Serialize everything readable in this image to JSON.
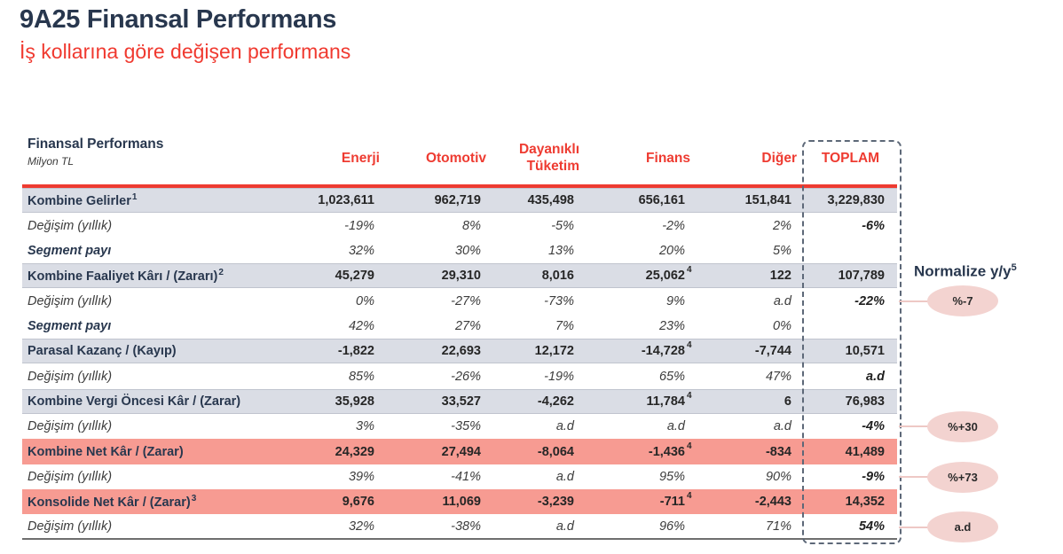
{
  "page": {
    "title": "9A25 Finansal Performans",
    "subtitle": "İş kollarına göre değişen performans"
  },
  "table": {
    "title": "Finansal Performans",
    "unit": "Milyon TL",
    "columns": [
      "Enerji",
      "Otomotiv",
      "Dayanıklı Tüketim",
      "Finans",
      "Diğer",
      "TOPLAM"
    ],
    "rows": [
      {
        "type": "main",
        "band": "gray",
        "label": "Kombine Gelirler",
        "label_sup": "1",
        "values": [
          "1,023,611",
          "962,719",
          "435,498",
          "656,161",
          "151,841",
          "3,229,830"
        ],
        "value_sups": [
          "",
          "",
          "",
          "",
          "",
          ""
        ]
      },
      {
        "type": "change",
        "band": null,
        "label": "Değişim (yıllık)",
        "label_sup": "",
        "values": [
          "-19%",
          "8%",
          "-5%",
          "-2%",
          "2%",
          "-6%"
        ],
        "value_sups": [
          "",
          "",
          "",
          "",
          "",
          ""
        ]
      },
      {
        "type": "share",
        "band": null,
        "label": "Segment payı",
        "label_sup": "",
        "values": [
          "32%",
          "30%",
          "13%",
          "20%",
          "5%",
          ""
        ],
        "value_sups": [
          "",
          "",
          "",
          "",
          "",
          ""
        ]
      },
      {
        "type": "main",
        "band": "gray",
        "label": "Kombine Faaliyet Kârı / (Zararı)",
        "label_sup": "2",
        "values": [
          "45,279",
          "29,310",
          "8,016",
          "25,062",
          "122",
          "107,789"
        ],
        "value_sups": [
          "",
          "",
          "",
          "4",
          "",
          ""
        ]
      },
      {
        "type": "change",
        "band": null,
        "label": "Değişim (yıllık)",
        "label_sup": "",
        "values": [
          "0%",
          "-27%",
          "-73%",
          "9%",
          "a.d",
          "-22%"
        ],
        "value_sups": [
          "",
          "",
          "",
          "",
          "",
          ""
        ]
      },
      {
        "type": "share",
        "band": null,
        "label": "Segment payı",
        "label_sup": "",
        "values": [
          "42%",
          "27%",
          "7%",
          "23%",
          "0%",
          ""
        ],
        "value_sups": [
          "",
          "",
          "",
          "",
          "",
          ""
        ]
      },
      {
        "type": "main",
        "band": "gray",
        "label": "Parasal Kazanç / (Kayıp)",
        "label_sup": "",
        "values": [
          "-1,822",
          "22,693",
          "12,172",
          "-14,728",
          "-7,744",
          "10,571"
        ],
        "value_sups": [
          "",
          "",
          "",
          "4",
          "",
          ""
        ]
      },
      {
        "type": "change",
        "band": null,
        "label": "Değişim (yıllık)",
        "label_sup": "",
        "values": [
          "85%",
          "-26%",
          "-19%",
          "65%",
          "47%",
          "a.d"
        ],
        "value_sups": [
          "",
          "",
          "",
          "",
          "",
          ""
        ]
      },
      {
        "type": "main",
        "band": "gray",
        "label": "Kombine Vergi Öncesi Kâr / (Zarar)",
        "label_sup": "",
        "values": [
          "35,928",
          "33,527",
          "-4,262",
          "11,784",
          "6",
          "76,983"
        ],
        "value_sups": [
          "",
          "",
          "",
          "4",
          "",
          ""
        ]
      },
      {
        "type": "change",
        "band": null,
        "label": "Değişim (yıllık)",
        "label_sup": "",
        "values": [
          "3%",
          "-35%",
          "a.d",
          "a.d",
          "a.d",
          "-4%"
        ],
        "value_sups": [
          "",
          "",
          "",
          "",
          "",
          ""
        ]
      },
      {
        "type": "main",
        "band": "pink",
        "label": "Kombine Net Kâr / (Zarar)",
        "label_sup": "",
        "values": [
          "24,329",
          "27,494",
          "-8,064",
          "-1,436",
          "-834",
          "41,489"
        ],
        "value_sups": [
          "",
          "",
          "",
          "4",
          "",
          ""
        ]
      },
      {
        "type": "change",
        "band": null,
        "label": "Değişim (yıllık)",
        "label_sup": "",
        "values": [
          "39%",
          "-41%",
          "a.d",
          "95%",
          "90%",
          "-9%"
        ],
        "value_sups": [
          "",
          "",
          "",
          "",
          "",
          ""
        ]
      },
      {
        "type": "main",
        "band": "pink",
        "label": "Konsolide Net Kâr / (Zarar)",
        "label_sup": "3",
        "values": [
          "9,676",
          "11,069",
          "-3,239",
          "-711",
          "-2,443",
          "14,352"
        ],
        "value_sups": [
          "",
          "",
          "",
          "4",
          "",
          ""
        ]
      },
      {
        "type": "change",
        "band": null,
        "label": "Değişim (yıllık)",
        "label_sup": "",
        "values": [
          "32%",
          "-38%",
          "a.d",
          "96%",
          "71%",
          "54%"
        ],
        "value_sups": [
          "",
          "",
          "",
          "",
          "",
          ""
        ]
      }
    ]
  },
  "normalize": {
    "label": "Normalize y/y",
    "sup": "5",
    "badges": [
      {
        "text": "%-7",
        "row": 4
      },
      {
        "text": "%+30",
        "row": 9
      },
      {
        "text": "%+73",
        "row": 11
      },
      {
        "text": "a.d",
        "row": 13
      }
    ]
  },
  "colors": {
    "accent_red": "#ee3b31",
    "title_navy": "#28374e",
    "band_gray": "#dadde5",
    "band_pink": "#f79b92",
    "badge_pink": "#f3d3d0",
    "dashed_border": "#5d6878"
  }
}
